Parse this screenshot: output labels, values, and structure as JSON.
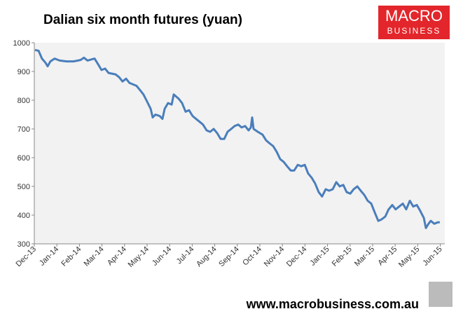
{
  "chart_data": {
    "type": "line",
    "title": "Dalian six month futures (yuan)",
    "logo": [
      "MACRO",
      "BUSINESS"
    ],
    "footer": "www.macrobusiness.com.au",
    "xlim": [
      0,
      18.2
    ],
    "xticks": [
      {
        "value": 0,
        "label": "Dec-13"
      },
      {
        "value": 1,
        "label": "Jan-14"
      },
      {
        "value": 2,
        "label": "Feb-14"
      },
      {
        "value": 3,
        "label": "Mar-14"
      },
      {
        "value": 4,
        "label": "Apr-14"
      },
      {
        "value": 5,
        "label": "May-14"
      },
      {
        "value": 6,
        "label": "Jun-14"
      },
      {
        "value": 7,
        "label": "Jul-14"
      },
      {
        "value": 8,
        "label": "Aug-14"
      },
      {
        "value": 9,
        "label": "Sep-14"
      },
      {
        "value": 10,
        "label": "Oct-14"
      },
      {
        "value": 11,
        "label": "Nov-14"
      },
      {
        "value": 12,
        "label": "Dec-14"
      },
      {
        "value": 13,
        "label": "Jan-15"
      },
      {
        "value": 14,
        "label": "Feb-15"
      },
      {
        "value": 15,
        "label": "Mar-15"
      },
      {
        "value": 16,
        "label": "Apr-15"
      },
      {
        "value": 17,
        "label": "May-15"
      },
      {
        "value": 18,
        "label": "Jun-15"
      }
    ],
    "ylim": [
      300,
      1000
    ],
    "yticks": [
      300,
      400,
      500,
      600,
      700,
      800,
      900,
      1000
    ],
    "x": [
      0.03,
      0.19,
      0.34,
      0.5,
      0.59,
      0.71,
      0.9,
      1.12,
      1.43,
      1.74,
      2.05,
      2.2,
      2.36,
      2.67,
      2.83,
      2.98,
      3.14,
      3.29,
      3.6,
      3.76,
      3.91,
      4.07,
      4.22,
      4.53,
      4.69,
      4.84,
      5.0,
      5.16,
      5.25,
      5.37,
      5.56,
      5.68,
      5.78,
      5.93,
      6.09,
      6.18,
      6.4,
      6.55,
      6.71,
      6.86,
      7.02,
      7.17,
      7.33,
      7.48,
      7.64,
      7.8,
      7.95,
      8.11,
      8.26,
      8.42,
      8.57,
      8.73,
      8.88,
      9.04,
      9.19,
      9.35,
      9.5,
      9.6,
      9.66,
      9.72,
      9.91,
      10.12,
      10.28,
      10.43,
      10.59,
      10.75,
      10.9,
      11.06,
      11.21,
      11.37,
      11.52,
      11.68,
      11.83,
      11.99,
      12.14,
      12.3,
      12.45,
      12.61,
      12.76,
      12.92,
      13.07,
      13.23,
      13.39,
      13.54,
      13.7,
      13.85,
      14.01,
      14.16,
      14.32,
      14.47,
      14.63,
      14.78,
      14.94,
      15.09,
      15.25,
      15.4,
      15.56,
      15.71,
      15.87,
      16.02,
      16.18,
      16.34,
      16.49,
      16.65,
      16.8,
      16.96,
      17.11,
      17.27,
      17.36,
      17.48,
      17.58,
      17.73,
      17.89,
      17.98
    ],
    "series": [
      {
        "color": "#4a7ebb",
        "values": [
          975,
          972,
          945,
          930,
          918,
          935,
          945,
          938,
          935,
          935,
          940,
          948,
          938,
          945,
          925,
          905,
          910,
          895,
          890,
          880,
          865,
          875,
          860,
          850,
          835,
          820,
          795,
          770,
          740,
          750,
          745,
          735,
          770,
          790,
          785,
          820,
          805,
          790,
          760,
          765,
          745,
          735,
          725,
          715,
          695,
          690,
          700,
          685,
          665,
          665,
          690,
          700,
          710,
          715,
          705,
          710,
          695,
          705,
          740,
          700,
          690,
          680,
          660,
          650,
          640,
          620,
          595,
          585,
          570,
          555,
          555,
          575,
          570,
          575,
          545,
          530,
          510,
          480,
          465,
          490,
          485,
          490,
          515,
          500,
          505,
          480,
          475,
          490,
          500,
          485,
          470,
          450,
          440,
          410,
          380,
          385,
          395,
          420,
          435,
          420,
          430,
          440,
          420,
          450,
          430,
          435,
          415,
          390,
          355,
          370,
          380,
          370,
          375,
          375
        ]
      }
    ]
  }
}
